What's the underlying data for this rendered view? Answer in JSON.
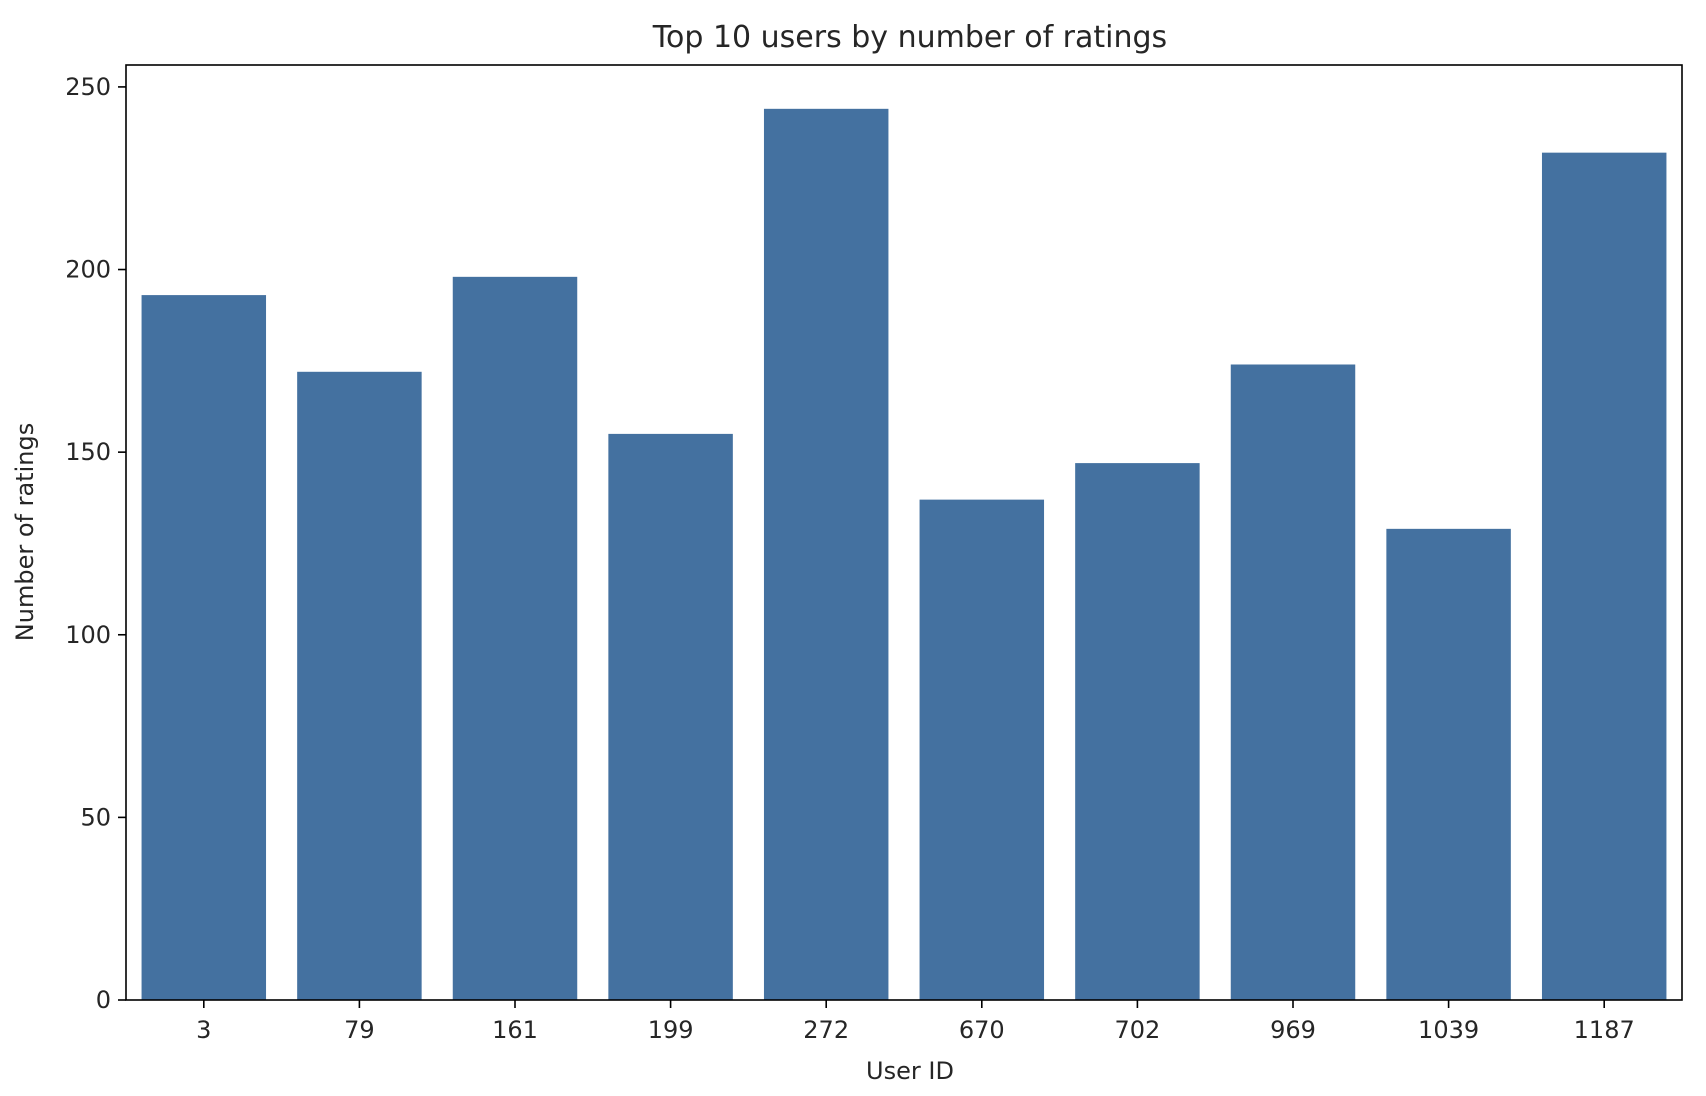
{
  "chart_data": {
    "type": "bar",
    "title": "Top 10 users by number of ratings",
    "xlabel": "User ID",
    "ylabel": "Number of ratings",
    "categories": [
      "3",
      "79",
      "161",
      "199",
      "272",
      "670",
      "702",
      "969",
      "1039",
      "1187"
    ],
    "values": [
      193,
      172,
      198,
      155,
      244,
      137,
      147,
      174,
      129,
      232
    ],
    "ylim": [
      0,
      256
    ],
    "yticks": [
      0,
      50,
      100,
      150,
      200,
      250
    ],
    "grid": false,
    "legend": "none",
    "bar_color": "#4471a0"
  }
}
